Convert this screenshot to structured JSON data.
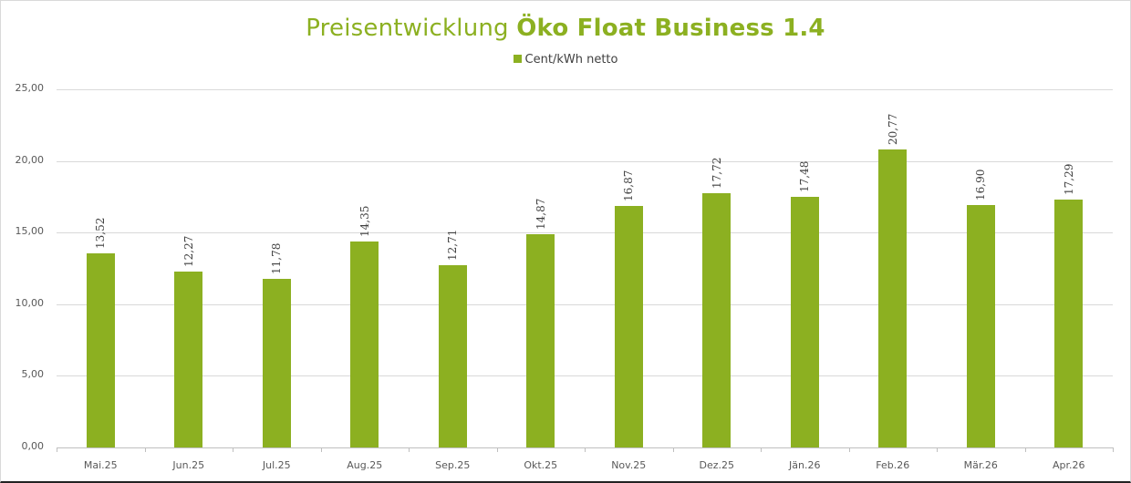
{
  "chart_data": {
    "type": "bar",
    "title": "Preisentwicklung Öko Float Business 1.4",
    "title_parts": {
      "regular": "Preisentwicklung ",
      "bold": "Öko Float Business 1.4"
    },
    "legend": [
      "Cent/kWh netto"
    ],
    "legend_position": "top",
    "xlabel": "",
    "ylabel": "",
    "ylim": [
      0,
      25
    ],
    "yticks": [
      "0,00",
      "5,00",
      "10,00",
      "15,00",
      "20,00",
      "25,00"
    ],
    "grid": true,
    "categories": [
      "Mai.25",
      "Jun.25",
      "Jul.25",
      "Aug.25",
      "Sep.25",
      "Okt.25",
      "Nov.25",
      "Dez.25",
      "Jän.26",
      "Feb.26",
      "Mär.26",
      "Apr.26"
    ],
    "series": [
      {
        "name": "Cent/kWh netto",
        "color": "#8cb021",
        "values": [
          13.52,
          12.27,
          11.78,
          14.35,
          12.71,
          14.87,
          16.87,
          17.72,
          17.48,
          20.77,
          16.9,
          17.29
        ],
        "labels": [
          "13,52",
          "12,27",
          "11,78",
          "14,35",
          "12,71",
          "14,87",
          "16,87",
          "17,72",
          "17,48",
          "20,77",
          "16,90",
          "17,29"
        ]
      }
    ]
  }
}
